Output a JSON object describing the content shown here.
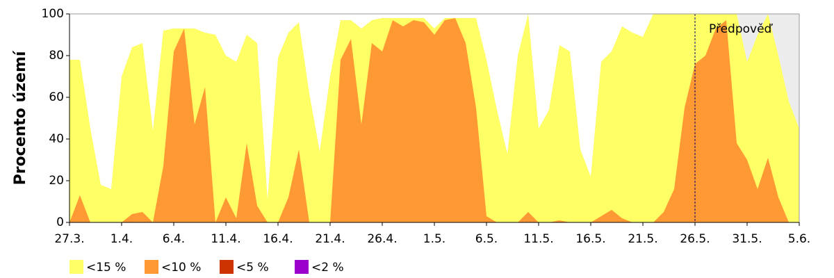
{
  "chart_data": {
    "type": "area",
    "y_label": "Procento území",
    "annotation": {
      "text": "Předpověď",
      "x": "26.5."
    },
    "categories": [
      "27.3.",
      null,
      null,
      null,
      null,
      "1.4.",
      null,
      null,
      null,
      null,
      "6.4.",
      null,
      null,
      null,
      null,
      "11.4.",
      null,
      null,
      null,
      null,
      "16.4.",
      null,
      null,
      null,
      null,
      "21.4.",
      null,
      null,
      null,
      null,
      "26.4.",
      null,
      null,
      null,
      null,
      "1.5.",
      null,
      null,
      null,
      null,
      "6.5.",
      null,
      null,
      null,
      null,
      "11.5.",
      null,
      null,
      null,
      null,
      "16.5.",
      null,
      null,
      null,
      null,
      "21.5.",
      null,
      null,
      null,
      null,
      "26.5.",
      null,
      null,
      null,
      null,
      "31.5.",
      null,
      null,
      null,
      null,
      "5.6."
    ],
    "series": [
      {
        "name": "<15 %",
        "color": "#ffff66",
        "values": [
          78,
          78,
          45,
          18,
          16,
          70,
          84,
          86,
          44,
          92,
          93,
          93,
          93,
          91,
          90,
          80,
          77,
          90,
          86,
          11,
          79,
          91,
          96,
          62,
          34,
          70,
          97,
          97,
          93,
          97,
          98,
          98,
          98,
          98,
          98,
          93,
          98,
          98,
          98,
          98,
          78,
          54,
          33,
          80,
          100,
          45,
          54,
          85,
          82,
          35,
          22,
          77,
          82,
          94,
          91,
          89,
          100,
          100,
          100,
          100,
          100,
          100,
          100,
          100,
          100,
          77,
          90,
          100,
          80,
          58,
          45
        ]
      },
      {
        "name": "<10 %",
        "color": "#ff9933",
        "values": [
          0,
          13,
          0,
          0,
          0,
          0,
          4,
          5,
          0,
          27,
          82,
          93,
          47,
          65,
          0,
          12,
          2,
          38,
          8,
          0,
          0,
          12,
          35,
          0,
          0,
          0,
          78,
          88,
          47,
          86,
          82,
          97,
          94,
          97,
          96,
          90,
          97,
          98,
          86,
          55,
          3,
          0,
          0,
          0,
          5,
          0,
          0,
          1,
          0,
          0,
          0,
          3,
          6,
          2,
          0,
          0,
          0,
          5,
          16,
          55,
          76,
          80,
          93,
          97,
          38,
          30,
          16,
          31,
          12,
          0,
          0
        ]
      },
      {
        "name": "<5 %",
        "color": "#cc3300",
        "values": [
          0,
          0,
          0,
          0,
          0,
          0,
          0,
          0,
          0,
          0,
          0,
          0,
          0,
          0,
          0,
          0,
          0,
          0,
          0,
          0,
          0,
          0,
          0,
          0,
          0,
          0,
          0,
          0,
          0,
          0,
          0,
          0,
          0,
          0,
          0,
          0,
          0,
          0,
          0,
          0,
          0,
          0,
          0,
          0,
          0,
          0,
          0,
          0,
          0,
          0,
          0,
          0,
          0,
          0,
          0,
          0,
          0,
          0,
          0,
          0,
          0,
          0,
          0,
          0,
          0,
          0,
          0,
          0,
          0,
          0,
          0
        ]
      },
      {
        "name": "<2 %",
        "color": "#9900cc",
        "values": [
          0,
          0,
          0,
          0,
          0,
          0,
          0,
          0,
          0,
          0,
          0,
          0,
          0,
          0,
          0,
          0,
          0,
          0,
          0,
          0,
          0,
          0,
          0,
          0,
          0,
          0,
          0,
          0,
          0,
          0,
          0,
          0,
          0,
          0,
          0,
          0,
          0,
          0,
          0,
          0,
          0,
          0,
          0,
          0,
          0,
          0,
          0,
          0,
          0,
          0,
          0,
          0,
          0,
          0,
          0,
          0,
          0,
          0,
          0,
          0,
          0,
          0,
          0,
          0,
          0,
          0,
          0,
          0,
          0,
          0,
          0
        ]
      }
    ],
    "ylim": [
      0,
      100
    ],
    "yticks": [
      0,
      20,
      40,
      60,
      80,
      100
    ]
  }
}
